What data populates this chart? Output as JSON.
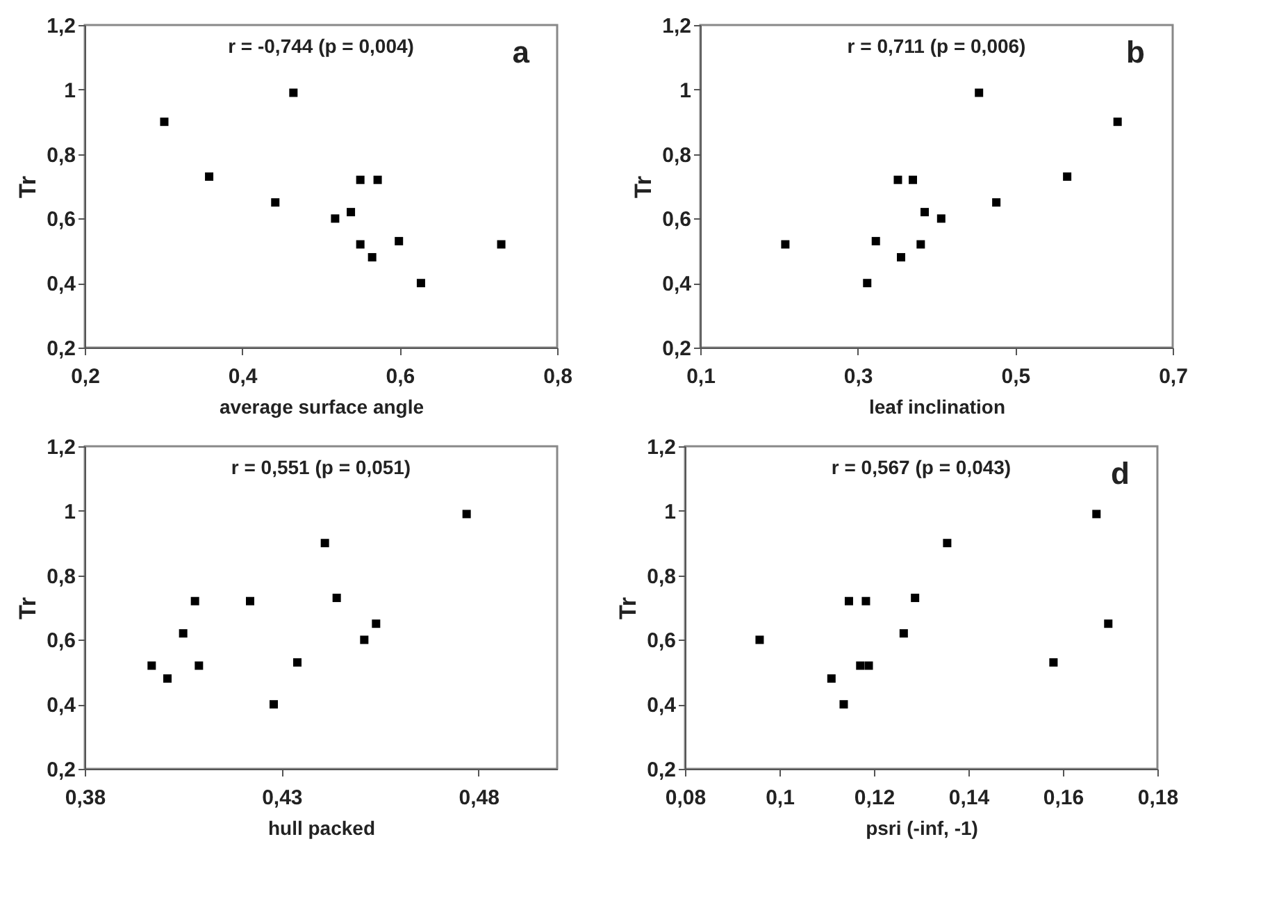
{
  "chart_data": [
    {
      "type": "scatter",
      "xlabel": "average surface angle",
      "ylabel": "Tr",
      "annotations": [
        "r = -0,744 (p = 0,004)",
        "a"
      ],
      "marker": "square",
      "color": "#000000",
      "x": [
        0.301,
        0.358,
        0.442,
        0.465,
        0.518,
        0.538,
        0.55,
        0.572,
        0.55,
        0.565,
        0.599,
        0.627,
        0.729
      ],
      "values": [
        0.9,
        0.73,
        0.65,
        0.99,
        0.6,
        0.62,
        0.72,
        0.72,
        0.52,
        0.48,
        0.53,
        0.4,
        0.52
      ],
      "xlim": [
        0.2,
        0.8
      ],
      "xticks": [
        {
          "value": 0.2,
          "label": "0,2"
        },
        {
          "value": 0.4,
          "label": "0,4"
        },
        {
          "value": 0.6,
          "label": "0,6"
        },
        {
          "value": 0.8,
          "label": "0,8"
        }
      ],
      "ylim": [
        0.2,
        1.2
      ],
      "yticks": [
        {
          "value": 0.2,
          "label": "0,2"
        },
        {
          "value": 0.4,
          "label": "0,4"
        },
        {
          "value": 0.6,
          "label": "0,6"
        },
        {
          "value": 0.8,
          "label": "0,8"
        },
        1,
        {
          "value": 1.2,
          "label": "1,2"
        }
      ]
    },
    {
      "type": "scatter",
      "xlabel": "leaf inclination",
      "ylabel": "Tr",
      "annotations": [
        "r = 0,711 (p = 0,006)",
        "b"
      ],
      "marker": "square",
      "color": "#000000",
      "x": [
        0.208,
        0.312,
        0.323,
        0.351,
        0.355,
        0.37,
        0.38,
        0.385,
        0.406,
        0.454,
        0.476,
        0.566,
        0.63
      ],
      "values": [
        0.52,
        0.4,
        0.53,
        0.72,
        0.48,
        0.72,
        0.52,
        0.62,
        0.6,
        0.99,
        0.65,
        0.73,
        0.9
      ],
      "xlim": [
        0.1,
        0.7
      ],
      "xticks": [
        {
          "value": 0.1,
          "label": "0,1"
        },
        {
          "value": 0.3,
          "label": "0,3"
        },
        {
          "value": 0.5,
          "label": "0,5"
        },
        {
          "value": 0.7,
          "label": "0,7"
        }
      ],
      "ylim": [
        0.2,
        1.2
      ],
      "yticks": [
        {
          "value": 0.2,
          "label": "0,2"
        },
        {
          "value": 0.4,
          "label": "0,4"
        },
        {
          "value": 0.6,
          "label": "0,6"
        },
        {
          "value": 0.8,
          "label": "0,8"
        },
        1,
        {
          "value": 1.2,
          "label": "1,2"
        }
      ]
    },
    {
      "type": "scatter",
      "xlabel": "hull packed",
      "ylabel": "Tr",
      "annotations": [
        "r = 0,551 (p = 0,051)"
      ],
      "marker": "square",
      "color": "#000000",
      "x": [
        0.397,
        0.401,
        0.405,
        0.408,
        0.409,
        0.422,
        0.428,
        0.434,
        0.441,
        0.444,
        0.451,
        0.454,
        0.477
      ],
      "values": [
        0.52,
        0.48,
        0.62,
        0.72,
        0.52,
        0.72,
        0.4,
        0.53,
        0.9,
        0.73,
        0.6,
        0.65,
        0.99
      ],
      "xlim": [
        0.38,
        0.5
      ],
      "xticks": [
        {
          "value": 0.38,
          "label": "0,38"
        },
        {
          "value": 0.43,
          "label": "0,43"
        },
        {
          "value": 0.48,
          "label": "0,48"
        }
      ],
      "ylim": [
        0.2,
        1.2
      ],
      "yticks": [
        {
          "value": 0.2,
          "label": "0,2"
        },
        {
          "value": 0.4,
          "label": "0,4"
        },
        {
          "value": 0.6,
          "label": "0,6"
        },
        {
          "value": 0.8,
          "label": "0,8"
        },
        1,
        {
          "value": 1.2,
          "label": "1,2"
        }
      ]
    },
    {
      "type": "scatter",
      "xlabel": "psri (-inf, -1)",
      "ylabel": "Tr",
      "annotations": [
        "r = 0,567 (p = 0,043)",
        "d"
      ],
      "marker": "square",
      "color": "#000000",
      "x": [
        0.0958,
        0.111,
        0.1136,
        0.1147,
        0.1171,
        0.1183,
        0.1189,
        0.1263,
        0.1287,
        0.1355,
        0.158,
        0.1671,
        0.1696
      ],
      "values": [
        0.6,
        0.48,
        0.4,
        0.72,
        0.52,
        0.72,
        0.52,
        0.62,
        0.73,
        0.9,
        0.53,
        0.99,
        0.65
      ],
      "xlim": [
        0.08,
        0.18
      ],
      "xticks": [
        {
          "value": 0.08,
          "label": "0,08"
        },
        {
          "value": 0.1,
          "label": "0,1"
        },
        {
          "value": 0.12,
          "label": "0,12"
        },
        {
          "value": 0.14,
          "label": "0,14"
        },
        {
          "value": 0.16,
          "label": "0,16"
        },
        {
          "value": 0.18,
          "label": "0,18"
        }
      ],
      "ylim": [
        0.2,
        1.2
      ],
      "yticks": [
        {
          "value": 0.2,
          "label": "0,2"
        },
        {
          "value": 0.4,
          "label": "0,4"
        },
        {
          "value": 0.6,
          "label": "0,6"
        },
        {
          "value": 0.8,
          "label": "0,8"
        },
        1,
        {
          "value": 1.2,
          "label": "1,2"
        }
      ]
    }
  ]
}
